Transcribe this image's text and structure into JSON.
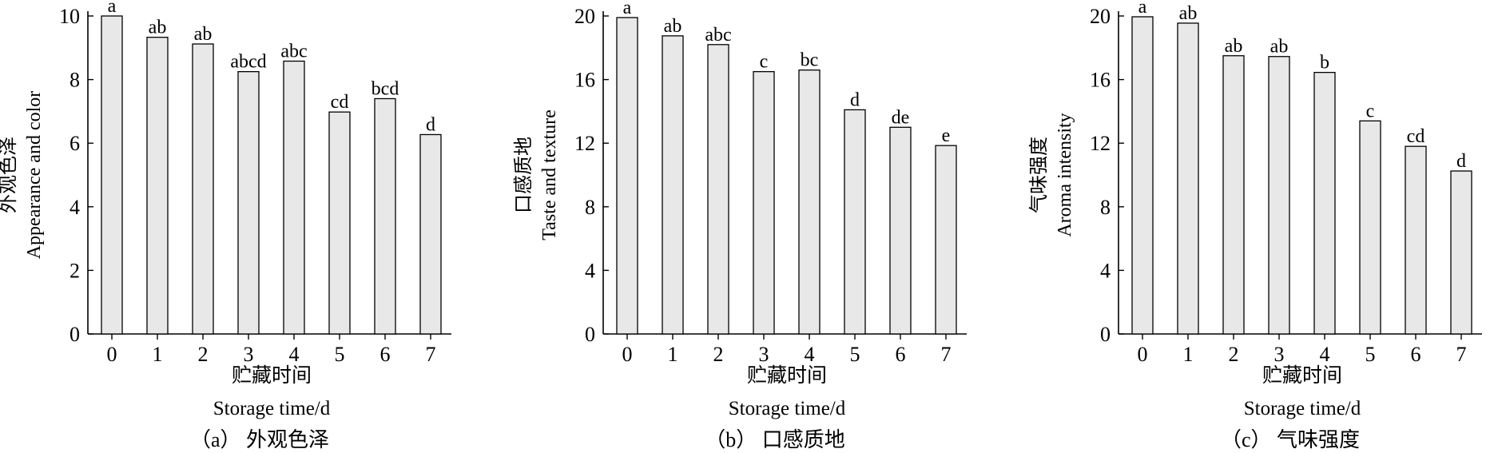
{
  "chart_data": [
    {
      "type": "bar",
      "caption": "（a） 外观色泽",
      "ylabel_cn": "外观色泽",
      "ylabel_en": "Appearance and color",
      "xlabel_cn": "贮藏时间",
      "xlabel_en": "Storage time/d",
      "categories": [
        "0",
        "1",
        "2",
        "3",
        "4",
        "5",
        "6",
        "7"
      ],
      "values": [
        10.0,
        9.33,
        9.12,
        8.25,
        8.58,
        6.98,
        7.4,
        6.27
      ],
      "letters": [
        "a",
        "ab",
        "ab",
        "abcd",
        "abc",
        "cd",
        "bcd",
        "d"
      ],
      "ylim": [
        0,
        10
      ],
      "yticks": [
        0,
        2,
        4,
        6,
        8,
        10
      ],
      "bar_color": "#e8e8e8",
      "grid": false
    },
    {
      "type": "bar",
      "caption": "（b） 口感质地",
      "ylabel_cn": "口感质地",
      "ylabel_en": "Taste and texture",
      "xlabel_cn": "贮藏时间",
      "xlabel_en": "Storage time/d",
      "categories": [
        "0",
        "1",
        "2",
        "3",
        "4",
        "5",
        "6",
        "7"
      ],
      "values": [
        19.9,
        18.75,
        18.2,
        16.5,
        16.6,
        14.1,
        13.0,
        11.85
      ],
      "letters": [
        "a",
        "ab",
        "abc",
        "c",
        "bc",
        "d",
        "de",
        "e"
      ],
      "ylim": [
        0,
        20
      ],
      "yticks": [
        0,
        4,
        8,
        12,
        16,
        20
      ],
      "bar_color": "#e8e8e8",
      "grid": false
    },
    {
      "type": "bar",
      "caption": "（c） 气味强度",
      "ylabel_cn": "气味强度",
      "ylabel_en": "Aroma intensity",
      "xlabel_cn": "贮藏时间",
      "xlabel_en": "Storage time/d",
      "categories": [
        "0",
        "1",
        "2",
        "3",
        "4",
        "5",
        "6",
        "7"
      ],
      "values": [
        19.95,
        19.55,
        17.5,
        17.45,
        16.45,
        13.4,
        11.8,
        10.25
      ],
      "letters": [
        "a",
        "ab",
        "ab",
        "ab",
        "b",
        "c",
        "cd",
        "d"
      ],
      "ylim": [
        0,
        20
      ],
      "yticks": [
        0,
        4,
        8,
        12,
        16,
        20
      ],
      "bar_color": "#e8e8e8",
      "grid": false
    }
  ]
}
